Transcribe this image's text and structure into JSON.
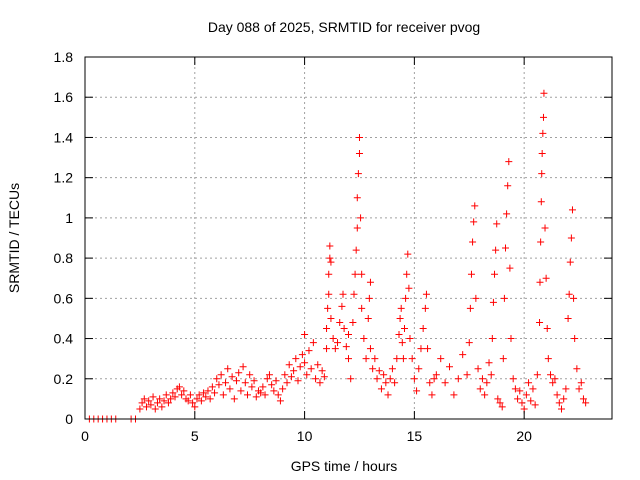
{
  "chart_data": {
    "type": "scatter",
    "title": "Day 088 of 2025, SRMTID for receiver pvog",
    "xlabel": "GPS time / hours",
    "ylabel": "SRMTID / TECUs",
    "xlim": [
      0,
      24
    ],
    "ylim": [
      0,
      1.8
    ],
    "xticks": [
      0,
      5,
      10,
      15,
      20
    ],
    "xtick_labels": [
      "0",
      "5",
      "10",
      "15",
      "20"
    ],
    "yticks": [
      0,
      0.2,
      0.4,
      0.6,
      0.8,
      1.0,
      1.2,
      1.4,
      1.6,
      1.8
    ],
    "ytick_labels": [
      "0",
      "0.2",
      "0.4",
      "0.6",
      "0.8",
      "1",
      "1.2",
      "1.4",
      "1.6",
      "1.8"
    ],
    "grid": true,
    "marker": "+",
    "color": "#ff0000",
    "series": [
      {
        "name": "SRMTID",
        "points": [
          [
            0.2,
            0.0
          ],
          [
            0.4,
            0.0
          ],
          [
            0.6,
            0.0
          ],
          [
            0.8,
            0.0
          ],
          [
            1.0,
            0.0
          ],
          [
            1.2,
            0.0
          ],
          [
            1.4,
            0.0
          ],
          [
            2.1,
            0.0
          ],
          [
            2.3,
            0.0
          ],
          [
            2.5,
            0.05
          ],
          [
            2.6,
            0.08
          ],
          [
            2.7,
            0.1
          ],
          [
            2.8,
            0.06
          ],
          [
            2.9,
            0.09
          ],
          [
            3.0,
            0.07
          ],
          [
            3.1,
            0.11
          ],
          [
            3.2,
            0.05
          ],
          [
            3.3,
            0.08
          ],
          [
            3.4,
            0.1
          ],
          [
            3.5,
            0.06
          ],
          [
            3.6,
            0.09
          ],
          [
            3.7,
            0.12
          ],
          [
            3.8,
            0.08
          ],
          [
            3.9,
            0.1
          ],
          [
            4.0,
            0.13
          ],
          [
            4.1,
            0.11
          ],
          [
            4.2,
            0.15
          ],
          [
            4.3,
            0.16
          ],
          [
            4.4,
            0.12
          ],
          [
            4.5,
            0.14
          ],
          [
            4.6,
            0.1
          ],
          [
            4.7,
            0.09
          ],
          [
            4.8,
            0.12
          ],
          [
            4.9,
            0.08
          ],
          [
            5.0,
            0.06
          ],
          [
            5.1,
            0.1
          ],
          [
            5.2,
            0.12
          ],
          [
            5.3,
            0.09
          ],
          [
            5.4,
            0.13
          ],
          [
            5.5,
            0.11
          ],
          [
            5.6,
            0.14
          ],
          [
            5.7,
            0.1
          ],
          [
            5.8,
            0.16
          ],
          [
            5.9,
            0.13
          ],
          [
            6.0,
            0.2
          ],
          [
            6.1,
            0.17
          ],
          [
            6.2,
            0.22
          ],
          [
            6.3,
            0.12
          ],
          [
            6.4,
            0.18
          ],
          [
            6.5,
            0.25
          ],
          [
            6.6,
            0.15
          ],
          [
            6.7,
            0.21
          ],
          [
            6.8,
            0.1
          ],
          [
            6.9,
            0.19
          ],
          [
            7.0,
            0.23
          ],
          [
            7.1,
            0.14
          ],
          [
            7.2,
            0.26
          ],
          [
            7.3,
            0.18
          ],
          [
            7.4,
            0.12
          ],
          [
            7.5,
            0.22
          ],
          [
            7.6,
            0.16
          ],
          [
            7.7,
            0.19
          ],
          [
            7.8,
            0.11
          ],
          [
            7.9,
            0.14
          ],
          [
            8.0,
            0.13
          ],
          [
            8.1,
            0.16
          ],
          [
            8.2,
            0.12
          ],
          [
            8.3,
            0.2
          ],
          [
            8.4,
            0.22
          ],
          [
            8.5,
            0.17
          ],
          [
            8.6,
            0.14
          ],
          [
            8.7,
            0.19
          ],
          [
            8.8,
            0.12
          ],
          [
            8.9,
            0.09
          ],
          [
            9.0,
            0.15
          ],
          [
            9.1,
            0.22
          ],
          [
            9.2,
            0.18
          ],
          [
            9.3,
            0.27
          ],
          [
            9.4,
            0.21
          ],
          [
            9.5,
            0.24
          ],
          [
            9.6,
            0.3
          ],
          [
            9.7,
            0.19
          ],
          [
            9.8,
            0.26
          ],
          [
            9.9,
            0.32
          ],
          [
            10.0,
            0.28
          ],
          [
            10.0,
            0.42
          ],
          [
            10.1,
            0.22
          ],
          [
            10.2,
            0.34
          ],
          [
            10.3,
            0.25
          ],
          [
            10.4,
            0.38
          ],
          [
            10.5,
            0.2
          ],
          [
            10.6,
            0.27
          ],
          [
            10.7,
            0.18
          ],
          [
            10.8,
            0.24
          ],
          [
            10.9,
            0.21
          ],
          [
            11.0,
            0.35
          ],
          [
            11.0,
            0.45
          ],
          [
            11.05,
            0.55
          ],
          [
            11.1,
            0.62
          ],
          [
            11.1,
            0.72
          ],
          [
            11.15,
            0.8
          ],
          [
            11.15,
            0.86
          ],
          [
            11.2,
            0.78
          ],
          [
            11.2,
            0.5
          ],
          [
            11.3,
            0.4
          ],
          [
            11.4,
            0.35
          ],
          [
            11.5,
            0.38
          ],
          [
            11.6,
            0.48
          ],
          [
            11.7,
            0.56
          ],
          [
            11.75,
            0.62
          ],
          [
            11.8,
            0.45
          ],
          [
            11.9,
            0.36
          ],
          [
            12.0,
            0.42
          ],
          [
            12.0,
            0.3
          ],
          [
            12.1,
            0.2
          ],
          [
            12.2,
            0.48
          ],
          [
            12.25,
            0.62
          ],
          [
            12.3,
            0.72
          ],
          [
            12.35,
            0.84
          ],
          [
            12.4,
            0.95
          ],
          [
            12.4,
            1.1
          ],
          [
            12.45,
            1.22
          ],
          [
            12.5,
            1.32
          ],
          [
            12.5,
            1.4
          ],
          [
            12.55,
            1.0
          ],
          [
            12.6,
            0.72
          ],
          [
            12.6,
            0.55
          ],
          [
            12.7,
            0.4
          ],
          [
            12.8,
            0.3
          ],
          [
            12.9,
            0.5
          ],
          [
            12.95,
            0.6
          ],
          [
            13.0,
            0.68
          ],
          [
            13.0,
            0.35
          ],
          [
            13.1,
            0.25
          ],
          [
            13.2,
            0.3
          ],
          [
            13.3,
            0.2
          ],
          [
            13.4,
            0.24
          ],
          [
            13.5,
            0.15
          ],
          [
            13.6,
            0.22
          ],
          [
            13.7,
            0.18
          ],
          [
            13.8,
            0.12
          ],
          [
            13.9,
            0.2
          ],
          [
            14.0,
            0.25
          ],
          [
            14.1,
            0.18
          ],
          [
            14.2,
            0.3
          ],
          [
            14.3,
            0.42
          ],
          [
            14.35,
            0.5
          ],
          [
            14.4,
            0.55
          ],
          [
            14.45,
            0.38
          ],
          [
            14.5,
            0.3
          ],
          [
            14.55,
            0.45
          ],
          [
            14.6,
            0.6
          ],
          [
            14.65,
            0.72
          ],
          [
            14.7,
            0.82
          ],
          [
            14.75,
            0.65
          ],
          [
            14.8,
            0.4
          ],
          [
            14.9,
            0.3
          ],
          [
            15.0,
            0.2
          ],
          [
            15.1,
            0.14
          ],
          [
            15.2,
            0.25
          ],
          [
            15.3,
            0.35
          ],
          [
            15.4,
            0.45
          ],
          [
            15.5,
            0.55
          ],
          [
            15.55,
            0.62
          ],
          [
            15.6,
            0.35
          ],
          [
            15.7,
            0.18
          ],
          [
            15.8,
            0.12
          ],
          [
            15.9,
            0.2
          ],
          [
            16.0,
            0.22
          ],
          [
            16.2,
            0.3
          ],
          [
            16.4,
            0.18
          ],
          [
            16.6,
            0.26
          ],
          [
            16.8,
            0.12
          ],
          [
            17.0,
            0.2
          ],
          [
            17.2,
            0.32
          ],
          [
            17.4,
            0.22
          ],
          [
            17.5,
            0.38
          ],
          [
            17.55,
            0.55
          ],
          [
            17.6,
            0.72
          ],
          [
            17.65,
            0.88
          ],
          [
            17.7,
            0.98
          ],
          [
            17.75,
            1.06
          ],
          [
            17.8,
            0.6
          ],
          [
            17.9,
            0.25
          ],
          [
            18.0,
            0.15
          ],
          [
            18.1,
            0.2
          ],
          [
            18.2,
            0.12
          ],
          [
            18.3,
            0.18
          ],
          [
            18.4,
            0.28
          ],
          [
            18.5,
            0.22
          ],
          [
            18.55,
            0.4
          ],
          [
            18.6,
            0.58
          ],
          [
            18.65,
            0.72
          ],
          [
            18.7,
            0.84
          ],
          [
            18.75,
            0.97
          ],
          [
            18.8,
            0.1
          ],
          [
            18.9,
            0.08
          ],
          [
            19.0,
            0.06
          ],
          [
            19.05,
            0.3
          ],
          [
            19.1,
            0.6
          ],
          [
            19.15,
            0.85
          ],
          [
            19.2,
            1.02
          ],
          [
            19.25,
            1.16
          ],
          [
            19.3,
            1.28
          ],
          [
            19.35,
            0.75
          ],
          [
            19.4,
            0.4
          ],
          [
            19.5,
            0.2
          ],
          [
            19.6,
            0.15
          ],
          [
            19.7,
            0.1
          ],
          [
            19.8,
            0.14
          ],
          [
            19.9,
            0.08
          ],
          [
            20.0,
            0.05
          ],
          [
            20.1,
            0.12
          ],
          [
            20.2,
            0.18
          ],
          [
            20.3,
            0.09
          ],
          [
            20.4,
            0.15
          ],
          [
            20.5,
            0.07
          ],
          [
            20.6,
            0.22
          ],
          [
            20.7,
            0.48
          ],
          [
            20.72,
            0.68
          ],
          [
            20.75,
            0.88
          ],
          [
            20.78,
            1.08
          ],
          [
            20.8,
            1.22
          ],
          [
            20.82,
            1.32
          ],
          [
            20.85,
            1.42
          ],
          [
            20.88,
            1.5
          ],
          [
            20.9,
            1.62
          ],
          [
            20.95,
            0.95
          ],
          [
            21.0,
            0.7
          ],
          [
            21.05,
            0.45
          ],
          [
            21.1,
            0.3
          ],
          [
            21.2,
            0.22
          ],
          [
            21.3,
            0.18
          ],
          [
            21.4,
            0.2
          ],
          [
            21.5,
            0.12
          ],
          [
            21.6,
            0.08
          ],
          [
            21.7,
            0.05
          ],
          [
            21.8,
            0.1
          ],
          [
            21.9,
            0.15
          ],
          [
            22.0,
            0.5
          ],
          [
            22.05,
            0.62
          ],
          [
            22.1,
            0.78
          ],
          [
            22.15,
            0.9
          ],
          [
            22.2,
            1.04
          ],
          [
            22.25,
            0.6
          ],
          [
            22.3,
            0.4
          ],
          [
            22.4,
            0.25
          ],
          [
            22.5,
            0.15
          ],
          [
            22.6,
            0.18
          ],
          [
            22.7,
            0.1
          ],
          [
            22.8,
            0.08
          ]
        ]
      }
    ]
  }
}
